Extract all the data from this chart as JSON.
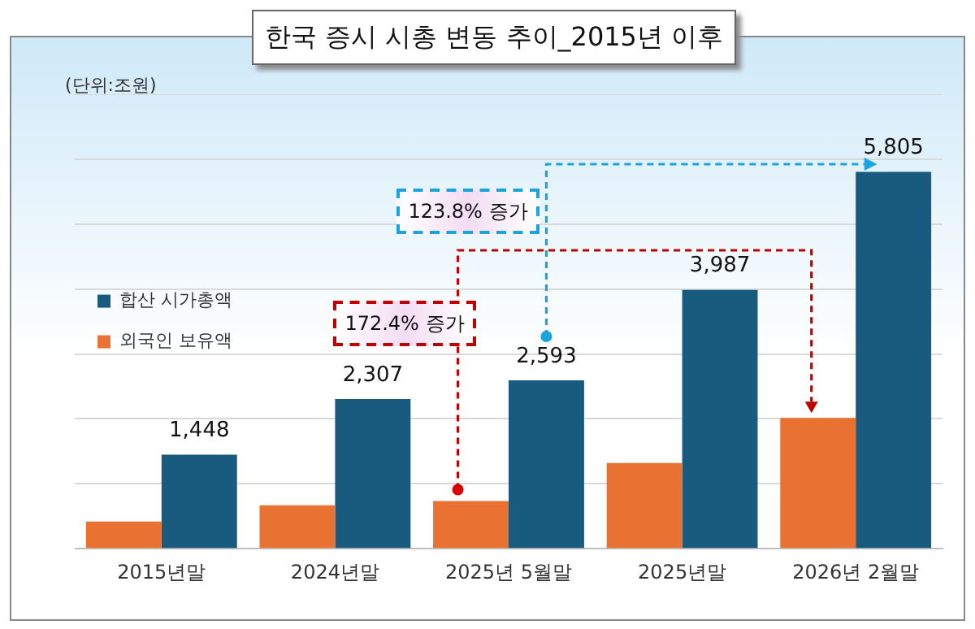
{
  "chart_data": {
    "type": "bar",
    "title": "한국 증시 시총 변동 추이_2015년 이후",
    "ylabel": "(단위:조원)",
    "categories": [
      "2015년말",
      "2024년말",
      "2025년 5월말",
      "2025년말",
      "2026년 2월말"
    ],
    "series": [
      {
        "name": "외국인 보유액",
        "color": "#e97132",
        "values": [
          420,
          670,
          735,
          1320,
          2015
        ]
      },
      {
        "name": "합산 시가총액",
        "color": "#195b7e",
        "values": [
          1448,
          2307,
          2593,
          3987,
          5805
        ],
        "value_labels": [
          "1,448",
          "2,307",
          "2,593",
          "3,987",
          "5,805"
        ]
      }
    ],
    "ylim": [
      0,
      7000
    ],
    "yticks": [
      {
        "value": 0,
        "label": null
      },
      {
        "value": 1000,
        "label": null
      },
      {
        "value": 2000,
        "label": null
      },
      {
        "value": 3000,
        "label": null
      },
      {
        "value": 4000,
        "label": null
      },
      {
        "value": 5000,
        "label": null
      },
      {
        "value": 6000,
        "label": null
      },
      {
        "value": 7000,
        "label": null
      }
    ],
    "tick_labels": "x",
    "grid": "y",
    "legend": "top",
    "annotations": [
      "123.8% 증가",
      "172.4% 증가"
    ]
  }
}
